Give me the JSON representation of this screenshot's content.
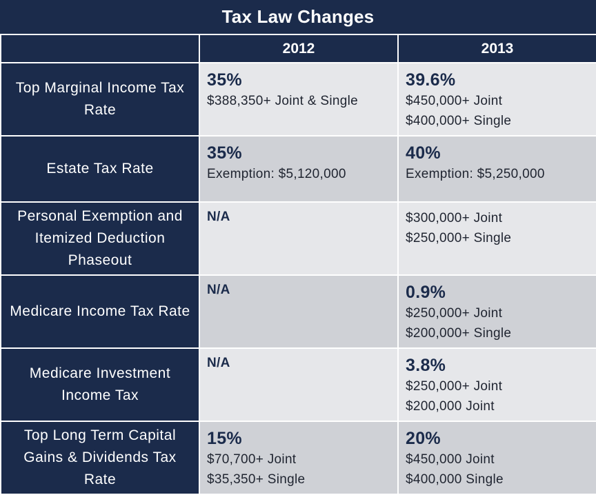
{
  "title": "Tax Law Changes",
  "columns": [
    "",
    "2012",
    "2013"
  ],
  "rows": [
    {
      "label": "Top Marginal Income Tax Rate",
      "y2012": {
        "rate": "35%",
        "lines": [
          "$388,350+ Joint & Single"
        ]
      },
      "y2013": {
        "rate": "39.6%",
        "lines": [
          "$450,000+ Joint",
          "$400,000+ Single"
        ]
      }
    },
    {
      "label": "Estate Tax Rate",
      "y2012": {
        "rate": "35%",
        "lines": [
          "Exemption: $5,120,000"
        ]
      },
      "y2013": {
        "rate": "40%",
        "lines": [
          "Exemption: $5,250,000"
        ]
      }
    },
    {
      "label": "Personal Exemption and Itemized Deduction Phaseout",
      "y2012": {
        "rate": "N/A",
        "lines": []
      },
      "y2013": {
        "rate": "",
        "lines": [
          "$300,000+ Joint",
          "$250,000+ Single"
        ]
      }
    },
    {
      "label": "Medicare Income Tax Rate",
      "y2012": {
        "rate": "N/A",
        "lines": []
      },
      "y2013": {
        "rate": "0.9%",
        "lines": [
          "$250,000+ Joint",
          "$200,000+ Single"
        ]
      }
    },
    {
      "label": "Medicare Investment Income Tax",
      "y2012": {
        "rate": "N/A",
        "lines": []
      },
      "y2013": {
        "rate": "3.8%",
        "lines": [
          "$250,000+ Joint",
          "$200,000 Joint"
        ]
      }
    },
    {
      "label": "Top Long Term Capital Gains & Dividends Tax Rate",
      "y2012": {
        "rate": "15%",
        "lines": [
          "$70,700+ Joint",
          "$35,350+ Single"
        ]
      },
      "y2013": {
        "rate": "20%",
        "lines": [
          "$450,000 Joint",
          "$400,000 Single"
        ]
      }
    }
  ],
  "colors": {
    "header_navy": "#1b2b4b",
    "row_light": "#e6e7ea",
    "row_dark": "#cfd1d6"
  }
}
